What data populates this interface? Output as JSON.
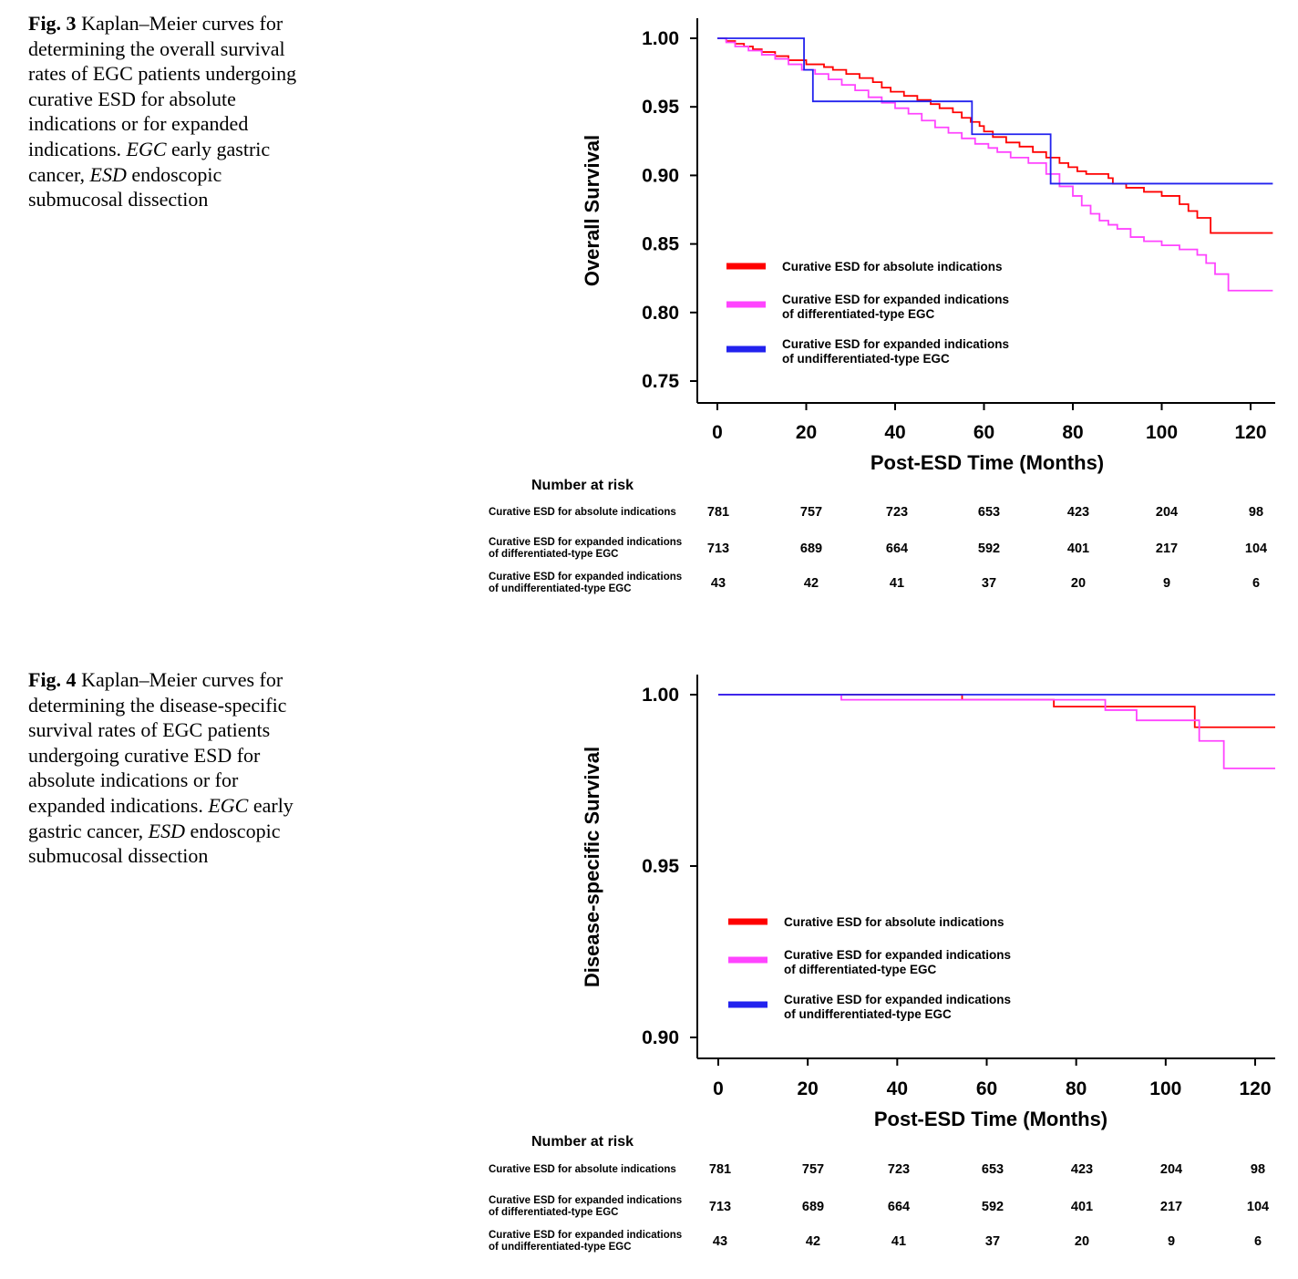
{
  "figures": [
    {
      "id": "fig3",
      "caption": {
        "prefix": "Fig. 3",
        "text": "Kaplan–Meier curves for determining the overall survival rates of EGC patients undergoing curative ESD for absolute indications or for expanded indications.",
        "abbr": [
          {
            "term": "EGC",
            "definition": "early gastric cancer,"
          },
          {
            "term": "ESD",
            "definition": "endoscopic submucosal dissection"
          }
        ]
      },
      "chart_data": {
        "type": "line",
        "step": true,
        "xlabel": "Post-ESD Time (Months)",
        "ylabel": "Overall Survival",
        "xlim": [
          0,
          125
        ],
        "ylim": [
          0.735,
          1.015
        ],
        "xticks": [
          "0",
          "20",
          "40",
          "60",
          "80",
          "100",
          "120"
        ],
        "xtick_values": [
          0,
          20,
          40,
          60,
          80,
          100,
          120
        ],
        "yticks": [
          "1.00",
          "0.95",
          "0.90",
          "0.85",
          "0.80",
          "0.75"
        ],
        "ytick_values": [
          1.0,
          0.95,
          0.9,
          0.85,
          0.8,
          0.75
        ],
        "legend_position": "bottom-left",
        "series": [
          {
            "name": "Curative ESD for absolute indications",
            "color": "#ff0000",
            "x": [
              0,
              2,
              4,
              6,
              8,
              10,
              13,
              16,
              20,
              24,
              26,
              29,
              32,
              35,
              37,
              39,
              42,
              45,
              48,
              50,
              53,
              55,
              57,
              59,
              60,
              62,
              65,
              68,
              71,
              74,
              77,
              79,
              81,
              83,
              88,
              89,
              92,
              96,
              100,
              104,
              106,
              108,
              111,
              125
            ],
            "y": [
              1.0,
              0.998,
              0.996,
              0.994,
              0.992,
              0.99,
              0.987,
              0.984,
              0.981,
              0.979,
              0.977,
              0.974,
              0.971,
              0.968,
              0.964,
              0.961,
              0.958,
              0.955,
              0.952,
              0.949,
              0.946,
              0.942,
              0.939,
              0.936,
              0.932,
              0.928,
              0.924,
              0.921,
              0.917,
              0.913,
              0.909,
              0.906,
              0.903,
              0.901,
              0.898,
              0.894,
              0.891,
              0.888,
              0.885,
              0.879,
              0.874,
              0.869,
              0.858,
              0.858
            ]
          },
          {
            "name": "Curative ESD for expanded indications of differentiated-type EGC",
            "color": "#ff44ff",
            "x": [
              0,
              2,
              4,
              7,
              10,
              13,
              16,
              19,
              22,
              25,
              28,
              31,
              34,
              37,
              40,
              43,
              46,
              49,
              52,
              55,
              58,
              61,
              63,
              66,
              70,
              74,
              77,
              80,
              82,
              84,
              86,
              88,
              90,
              93,
              96,
              100,
              104,
              108,
              110,
              112,
              115,
              125
            ],
            "y": [
              1.0,
              0.997,
              0.994,
              0.991,
              0.988,
              0.985,
              0.981,
              0.977,
              0.974,
              0.97,
              0.966,
              0.962,
              0.957,
              0.953,
              0.949,
              0.945,
              0.94,
              0.935,
              0.931,
              0.927,
              0.923,
              0.92,
              0.917,
              0.913,
              0.909,
              0.901,
              0.892,
              0.885,
              0.878,
              0.872,
              0.867,
              0.864,
              0.861,
              0.855,
              0.852,
              0.849,
              0.846,
              0.842,
              0.836,
              0.828,
              0.816,
              0.816
            ]
          },
          {
            "name": "Curative ESD for expanded indications of undifferentiated-type EGC",
            "color": "#2222ee",
            "x": [
              0,
              19.5,
              21.5,
              57.3,
              75,
              125
            ],
            "y": [
              1.0,
              0.977,
              0.954,
              0.93,
              0.894,
              0.894
            ]
          }
        ]
      },
      "risk_table": {
        "title": "Number at risk",
        "rows": [
          {
            "label": "Curative ESD for absolute indications",
            "values": [
              "781",
              "757",
              "723",
              "653",
              "423",
              "204",
              "98"
            ]
          },
          {
            "label": "Curative ESD for expanded indications\nof differentiated-type EGC",
            "values": [
              "713",
              "689",
              "664",
              "592",
              "401",
              "217",
              "104"
            ]
          },
          {
            "label": "Curative ESD for expanded indications\nof undifferentiated-type EGC",
            "values": [
              "43",
              "42",
              "41",
              "37",
              "20",
              "9",
              "6"
            ]
          }
        ]
      }
    },
    {
      "id": "fig4",
      "caption": {
        "prefix": "Fig. 4",
        "text": "Kaplan–Meier curves for determining the disease-specific survival rates of EGC patients undergoing curative ESD for absolute indications or for expanded indications.",
        "abbr": [
          {
            "term": "EGC",
            "definition": "early gastric cancer,"
          },
          {
            "term": "ESD",
            "definition": "endoscopic submucosal dissection"
          }
        ]
      },
      "chart_data": {
        "type": "line",
        "step": true,
        "xlabel": "Post-ESD Time (Months)",
        "ylabel": "Disease-specific Survival",
        "xlim": [
          0,
          125
        ],
        "ylim": [
          0.893,
          1.006
        ],
        "xticks": [
          "0",
          "20",
          "40",
          "60",
          "80",
          "100",
          "120"
        ],
        "xtick_values": [
          0,
          20,
          40,
          60,
          80,
          100,
          120
        ],
        "yticks": [
          "1.00",
          "0.95",
          "0.90"
        ],
        "ytick_values": [
          1.0,
          0.95,
          0.9
        ],
        "legend_position": "bottom-left",
        "series": [
          {
            "name": "Curative ESD for absolute indications",
            "color": "#ff0000",
            "x": [
              0,
              54.5,
              75,
              106.5,
              125
            ],
            "y": [
              1.0,
              0.9985,
              0.9965,
              0.9905,
              0.9905
            ]
          },
          {
            "name": "Curative ESD for expanded indications of differentiated-type EGC",
            "color": "#ff44ff",
            "x": [
              0,
              27.5,
              86.5,
              93.5,
              107.5,
              113,
              125
            ],
            "y": [
              1.0,
              0.9985,
              0.9955,
              0.9925,
              0.9865,
              0.9785,
              0.9785
            ]
          },
          {
            "name": "Curative ESD for expanded indications of undifferentiated-type EGC",
            "color": "#2222ee",
            "x": [
              0,
              125
            ],
            "y": [
              1.0,
              1.0
            ]
          }
        ]
      },
      "risk_table": {
        "title": "Number at risk",
        "rows": [
          {
            "label": "Curative ESD for absolute indications",
            "values": [
              "781",
              "757",
              "723",
              "653",
              "423",
              "204",
              "98"
            ]
          },
          {
            "label": "Curative ESD for expanded indications\nof differentiated-type EGC",
            "values": [
              "713",
              "689",
              "664",
              "592",
              "401",
              "217",
              "104"
            ]
          },
          {
            "label": "Curative ESD for expanded indications\nof undifferentiated-type EGC",
            "values": [
              "43",
              "42",
              "41",
              "37",
              "20",
              "9",
              "6"
            ]
          }
        ]
      }
    }
  ]
}
